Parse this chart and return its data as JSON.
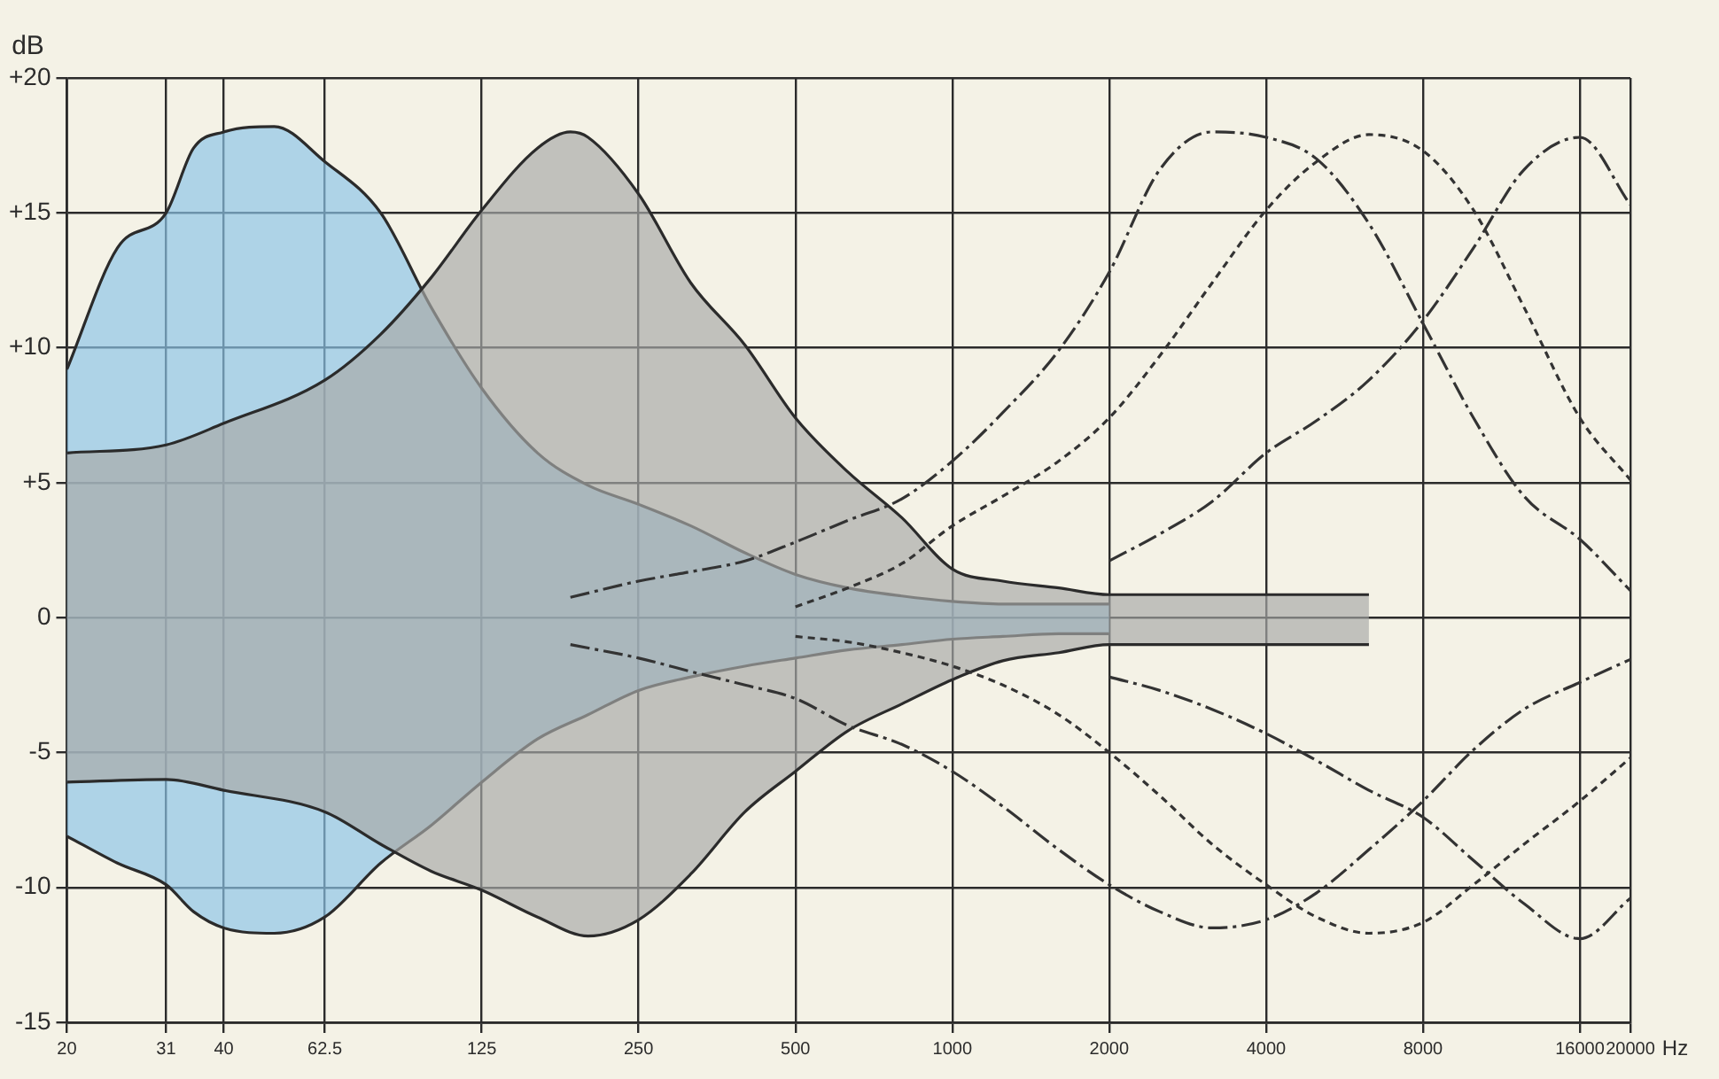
{
  "chart_data": {
    "type": "line",
    "xlabel": "Hz",
    "ylabel": "dB",
    "log": "x",
    "grid": true,
    "marker": "none",
    "xlim": [
      20,
      20000
    ],
    "xticks": [
      20,
      31,
      40,
      62.5,
      125,
      250,
      500,
      1000,
      2000,
      4000,
      8000,
      16000,
      20000
    ],
    "ylim": [
      -15,
      20
    ],
    "yticks": [
      {
        "value": 20,
        "label": "+20"
      },
      {
        "value": 15,
        "label": "+15"
      },
      {
        "value": 10,
        "label": "+10"
      },
      {
        "value": 5,
        "label": "+5"
      },
      0,
      -5,
      -10,
      -15
    ],
    "series": [
      {
        "type": "area",
        "color": "#8cc4e8",
        "line_style": "solid",
        "x": [
          20,
          25,
          31,
          35,
          40,
          50,
          62.5,
          80,
          100,
          125,
          160,
          200,
          250,
          315,
          400,
          500,
          630,
          800,
          1000,
          1250,
          1600,
          2000
        ],
        "values": [
          9.2,
          13.7,
          15.0,
          17.4,
          18.0,
          18.2,
          16.9,
          15.0,
          11.5,
          8.5,
          6.1,
          4.9,
          4.2,
          3.4,
          2.4,
          1.6,
          1.1,
          0.8,
          0.6,
          0.5,
          0.5,
          0.5
        ]
      },
      {
        "type": "area",
        "color": "#8cc4e8",
        "line_style": "solid",
        "x": [
          20,
          25,
          31,
          35,
          40,
          50,
          62.5,
          80,
          100,
          125,
          160,
          200,
          250,
          315,
          400,
          500,
          630,
          800,
          1000,
          1250,
          1600,
          2000
        ],
        "values": [
          -8.1,
          -9.1,
          -9.9,
          -10.9,
          -11.5,
          -11.7,
          -11.1,
          -9.1,
          -7.7,
          -6.1,
          -4.5,
          -3.6,
          -2.7,
          -2.2,
          -1.8,
          -1.5,
          -1.2,
          -1.0,
          -0.8,
          -0.7,
          -0.6,
          -0.6
        ]
      },
      {
        "type": "area",
        "color": "#a8a9a8",
        "line_style": "solid",
        "x": [
          20,
          31,
          40,
          62.5,
          80,
          100,
          125,
          160,
          185,
          200,
          250,
          315,
          400,
          500,
          630,
          800,
          1000,
          1250,
          1600,
          2000,
          2500,
          3150,
          4000,
          5000,
          6300
        ],
        "values": [
          6.1,
          6.4,
          7.2,
          8.8,
          10.5,
          12.6,
          15.1,
          17.4,
          18.0,
          17.8,
          15.7,
          12.4,
          10.1,
          7.4,
          5.4,
          3.7,
          1.8,
          1.35,
          1.1,
          0.85,
          0.85,
          0.85,
          0.85,
          0.85,
          0.85
        ]
      },
      {
        "type": "area",
        "color": "#a8a9a8",
        "line_style": "solid",
        "x": [
          20,
          31,
          40,
          62.5,
          80,
          100,
          125,
          160,
          200,
          250,
          315,
          400,
          500,
          630,
          800,
          1000,
          1250,
          1600,
          2000,
          2500,
          3150,
          4000,
          5000,
          6300
        ],
        "values": [
          -6.1,
          -6.0,
          -6.4,
          -7.2,
          -8.4,
          -9.4,
          -10.1,
          -11.1,
          -11.8,
          -11.2,
          -9.5,
          -7.2,
          -5.7,
          -4.2,
          -3.2,
          -2.3,
          -1.6,
          -1.3,
          -1.0,
          -1.0,
          -1.0,
          -1.0,
          -1.0,
          -1.0
        ]
      },
      {
        "type": "line",
        "color": "#333333",
        "line_style": "dashed",
        "x": [
          185,
          250,
          315,
          400,
          500,
          630,
          800,
          1000,
          1250,
          1600,
          2000,
          2500,
          3150,
          4000,
          5000,
          6300,
          8000,
          10000,
          12500,
          16000,
          20000
        ],
        "values": [
          0.75,
          1.35,
          1.7,
          2.1,
          2.8,
          3.6,
          4.4,
          5.8,
          7.6,
          9.9,
          12.8,
          16.6,
          18.0,
          17.8,
          17.0,
          14.6,
          10.9,
          7.4,
          4.5,
          2.9,
          1.0
        ]
      },
      {
        "type": "line",
        "color": "#333333",
        "line_style": "dashed",
        "x": [
          185,
          250,
          315,
          400,
          500,
          630,
          800,
          1000,
          1250,
          1600,
          2000,
          2500,
          3150,
          4000,
          5000,
          6300,
          8000,
          10000,
          12500,
          16000,
          20000
        ],
        "values": [
          -1.0,
          -1.5,
          -2.0,
          -2.5,
          -3.0,
          -4.0,
          -4.7,
          -5.7,
          -7.0,
          -8.6,
          -9.9,
          -10.9,
          -11.5,
          -11.2,
          -10.2,
          -8.6,
          -6.8,
          -4.9,
          -3.4,
          -2.4,
          -1.55
        ]
      },
      {
        "type": "line",
        "color": "#333333",
        "line_style": "dotted",
        "x": [
          500,
          630,
          800,
          1000,
          1250,
          1600,
          2000,
          2500,
          3150,
          4000,
          5000,
          6300,
          8000,
          10000,
          12500,
          16000,
          20000
        ],
        "values": [
          0.4,
          1.1,
          2.0,
          3.4,
          4.5,
          5.8,
          7.4,
          9.7,
          12.4,
          15.1,
          16.9,
          17.9,
          17.3,
          15.1,
          11.5,
          7.4,
          5.1
        ]
      },
      {
        "type": "line",
        "color": "#333333",
        "line_style": "dotted",
        "x": [
          500,
          630,
          800,
          1000,
          1250,
          1600,
          2000,
          2500,
          3150,
          4000,
          5000,
          6300,
          8000,
          10000,
          12500,
          16000,
          20000
        ],
        "values": [
          -0.7,
          -0.9,
          -1.3,
          -1.8,
          -2.5,
          -3.6,
          -5.0,
          -6.6,
          -8.4,
          -9.9,
          -11.1,
          -11.7,
          -11.3,
          -9.9,
          -8.4,
          -6.8,
          -5.2
        ]
      },
      {
        "type": "line",
        "color": "#333333",
        "line_style": "dashed",
        "x": [
          2000,
          2500,
          3150,
          4000,
          5000,
          6300,
          8000,
          10000,
          12500,
          16000,
          20000
        ],
        "values": [
          2.1,
          3.1,
          4.3,
          6.1,
          7.3,
          8.8,
          11.0,
          13.7,
          16.6,
          17.8,
          15.3
        ]
      },
      {
        "type": "line",
        "color": "#333333",
        "line_style": "dashed",
        "x": [
          2000,
          2500,
          3150,
          4000,
          5000,
          6300,
          8000,
          10000,
          12500,
          16000,
          20000
        ],
        "values": [
          -2.2,
          -2.7,
          -3.4,
          -4.3,
          -5.3,
          -6.4,
          -7.4,
          -9.0,
          -10.6,
          -11.9,
          -10.4
        ]
      }
    ]
  }
}
